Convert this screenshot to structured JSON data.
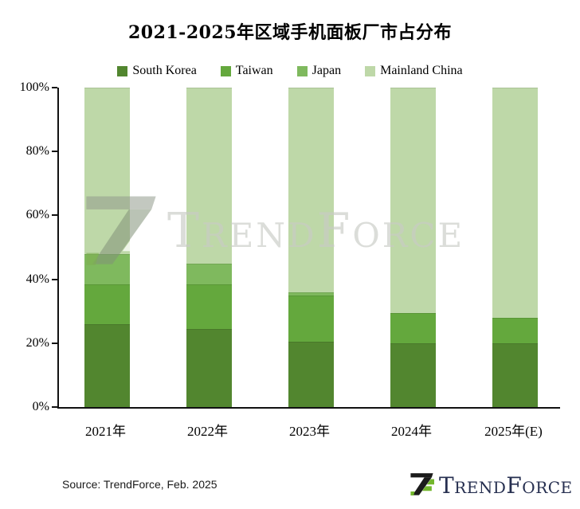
{
  "watermark": {
    "text": "TrendForce"
  },
  "source_note": "Source: TrendForce, Feb. 2025",
  "footer_logo": {
    "text": "TrendForce"
  },
  "chart_data": {
    "type": "bar",
    "stacked": true,
    "title": "2021-2025年区域手机面板厂市占分布",
    "categories": [
      "2021年",
      "2022年",
      "2023年",
      "2024年",
      "2025年(E)"
    ],
    "series": [
      {
        "name": "South Korea",
        "color": "#52862f",
        "values": [
          26,
          24.5,
          20.5,
          20,
          20
        ]
      },
      {
        "name": "Taiwan",
        "color": "#64a83d",
        "values": [
          12.5,
          14,
          14.5,
          9.5,
          8
        ]
      },
      {
        "name": "Japan",
        "color": "#7fb95e",
        "values": [
          9.5,
          6.5,
          1,
          0,
          0
        ]
      },
      {
        "name": "Mainland China",
        "color": "#bed8a8",
        "values": [
          52,
          55,
          64,
          70.5,
          72
        ]
      }
    ],
    "xlabel": "",
    "ylabel": "",
    "ylim": [
      0,
      100
    ],
    "yticks": [
      "0%",
      "20%",
      "40%",
      "60%",
      "80%",
      "100%"
    ],
    "legend_position": "top",
    "grid": false
  }
}
